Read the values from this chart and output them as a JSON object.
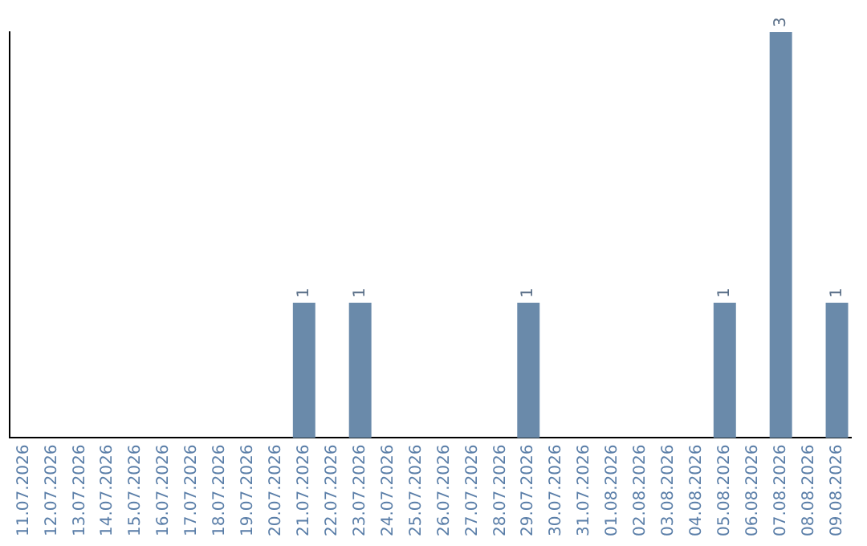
{
  "chart_data": {
    "type": "bar",
    "categories": [
      "11.07.2026",
      "12.07.2026",
      "13.07.2026",
      "14.07.2026",
      "15.07.2026",
      "16.07.2026",
      "17.07.2026",
      "18.07.2026",
      "19.07.2026",
      "20.07.2026",
      "21.07.2026",
      "22.07.2026",
      "23.07.2026",
      "24.07.2026",
      "25.07.2026",
      "26.07.2026",
      "27.07.2026",
      "28.07.2026",
      "29.07.2026",
      "30.07.2026",
      "31.07.2026",
      "01.08.2026",
      "02.08.2026",
      "03.08.2026",
      "04.08.2026",
      "05.08.2026",
      "06.08.2026",
      "07.08.2026",
      "08.08.2026",
      "09.08.2026"
    ],
    "values": [
      0,
      0,
      0,
      0,
      0,
      0,
      0,
      0,
      0,
      0,
      1,
      0,
      1,
      0,
      0,
      0,
      0,
      0,
      1,
      0,
      0,
      0,
      0,
      0,
      0,
      1,
      0,
      3,
      0,
      1
    ],
    "value_labels": [
      null,
      null,
      null,
      null,
      null,
      null,
      null,
      null,
      null,
      null,
      "1",
      null,
      "1",
      null,
      null,
      null,
      null,
      null,
      "1",
      null,
      null,
      null,
      null,
      null,
      null,
      "1",
      null,
      "3",
      null,
      "1"
    ],
    "color": "#6a8aaa",
    "grid": false,
    "legend": false
  }
}
